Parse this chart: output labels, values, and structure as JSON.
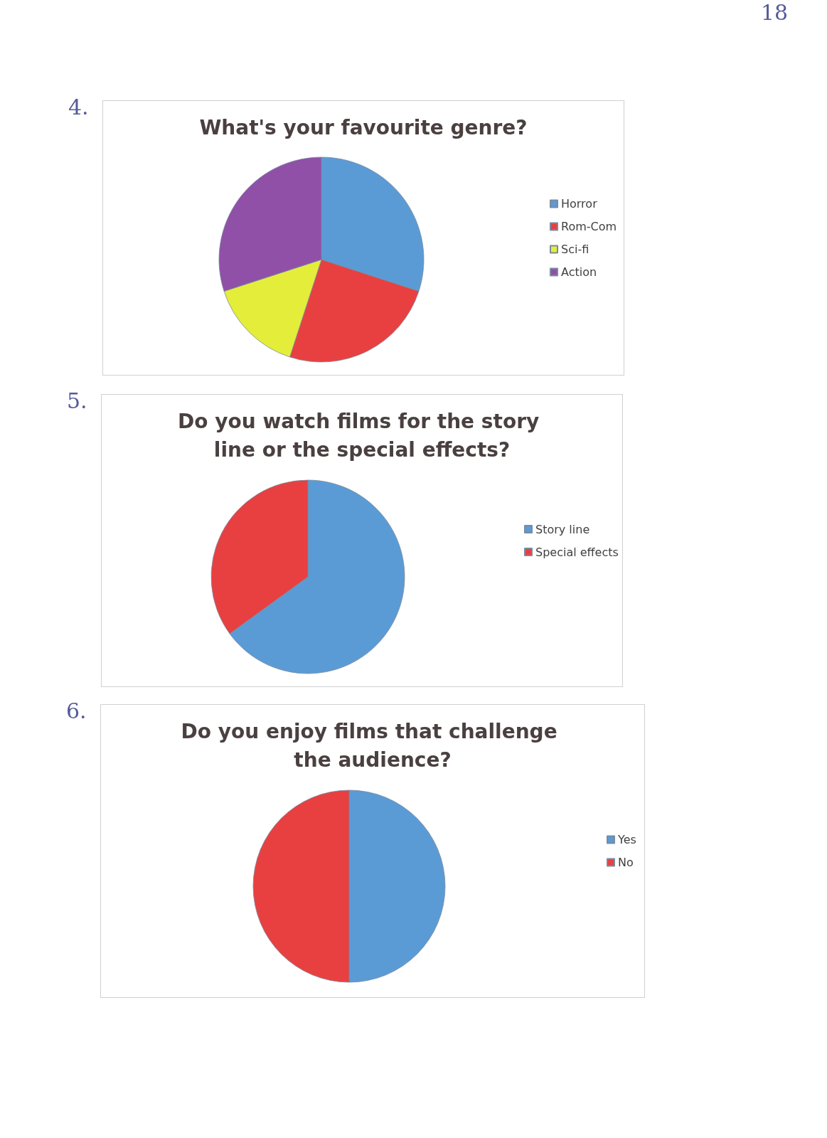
{
  "chart_data": [
    {
      "type": "pie",
      "title": "What's your favourite genre?",
      "categories": [
        "Horror",
        "Rom-Com",
        "Sci-fi",
        "Action"
      ],
      "values": [
        30,
        25,
        15,
        30
      ],
      "colors": [
        "#5b9bd5",
        "#e84040",
        "#e4ee3a",
        "#9050a8"
      ],
      "legend": "right",
      "annotations": [
        "4.",
        "18"
      ]
    },
    {
      "type": "pie",
      "title": "Do you watch films for the story line or the special effects?",
      "categories": [
        "Story line",
        "Special effects"
      ],
      "values": [
        65,
        35
      ],
      "colors": [
        "#5b9bd5",
        "#e84040"
      ],
      "legend": "right",
      "annotations": [
        "5."
      ]
    },
    {
      "type": "pie",
      "title": "Do you enjoy films that challenge the audience?",
      "categories": [
        "Yes",
        "No"
      ],
      "values": [
        50,
        50
      ],
      "colors": [
        "#5b9bd5",
        "#e84040"
      ],
      "legend": "right",
      "annotations": [
        "6."
      ]
    }
  ]
}
